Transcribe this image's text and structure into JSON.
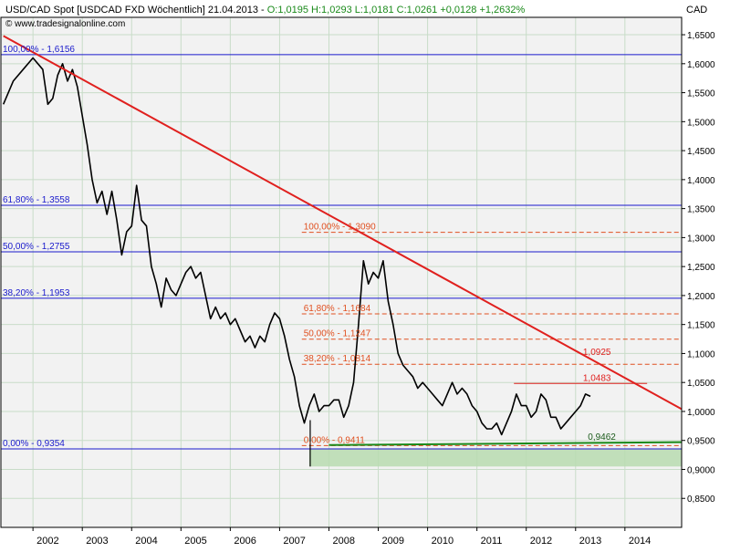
{
  "header": {
    "line1_main": "USD/CAD Spot [USDCAD FXD  Wöchentlich] 21.04.2013 - ",
    "line1_o": "O:1,0195",
    "line1_h": " H:1,0293",
    "line1_l": " L:1,0181",
    "line1_c": " C:1,0261 +0,0128 +1,2632%",
    "line2": "© www.tradesignalonline.com",
    "currency": "CAD"
  },
  "colors": {
    "background": "#f2f2f2",
    "grid": "#c8dcc8",
    "price": "#000000",
    "trendline": "#e0201e",
    "fib_major": "#1a1acc",
    "fib_minor": "#e05020",
    "support": "#1a8a1a",
    "zone": "#b8dcb0",
    "header_green": "#1a8a1a",
    "header_blue": "#0000cc"
  },
  "chart_data": {
    "type": "line",
    "title": "USD/CAD Spot [USDCAD FXD Wöchentlich] 21.04.2013",
    "x_unit": "year",
    "ylim": [
      0.8,
      1.68
    ],
    "xlim": [
      2001.35,
      2015.15
    ],
    "y_ticks": [
      "1,6500",
      "1,6000",
      "1,5500",
      "1,5000",
      "1,4500",
      "1,4000",
      "1,3500",
      "1,3000",
      "1,2500",
      "1,2000",
      "1,1500",
      "1,1000",
      "1,0500",
      "1,0000",
      "0,9500",
      "0,9000",
      "0,8500"
    ],
    "y_tick_values": [
      1.65,
      1.6,
      1.55,
      1.5,
      1.45,
      1.4,
      1.35,
      1.3,
      1.25,
      1.2,
      1.15,
      1.1,
      1.05,
      1.0,
      0.95,
      0.9,
      0.85
    ],
    "x_ticks": [
      "2002",
      "2003",
      "2004",
      "2005",
      "2006",
      "2007",
      "2008",
      "2009",
      "2010",
      "2011",
      "2012",
      "2013",
      "2014"
    ],
    "x_tick_values": [
      2002,
      2003,
      2004,
      2005,
      2006,
      2007,
      2008,
      2009,
      2010,
      2011,
      2012,
      2013,
      2014
    ],
    "grid": true,
    "series": [
      {
        "x": [
          2001.4,
          2001.6,
          2001.8,
          2002.0,
          2002.1,
          2002.2,
          2002.3,
          2002.4,
          2002.5,
          2002.6,
          2002.7,
          2002.8,
          2002.9,
          2003.0,
          2003.1,
          2003.2,
          2003.3,
          2003.4,
          2003.5,
          2003.6,
          2003.7,
          2003.8,
          2003.9,
          2004.0,
          2004.1,
          2004.2,
          2004.3,
          2004.4,
          2004.5,
          2004.6,
          2004.7,
          2004.8,
          2004.9,
          2005.0,
          2005.1,
          2005.2,
          2005.3,
          2005.4,
          2005.5,
          2005.6,
          2005.7,
          2005.8,
          2005.9,
          2006.0,
          2006.1,
          2006.2,
          2006.3,
          2006.4,
          2006.5,
          2006.6,
          2006.7,
          2006.8,
          2006.9,
          2007.0,
          2007.1,
          2007.2,
          2007.3,
          2007.4,
          2007.5,
          2007.6,
          2007.7,
          2007.8,
          2007.9,
          2008.0,
          2008.1,
          2008.2,
          2008.3,
          2008.4,
          2008.5,
          2008.6,
          2008.7,
          2008.8,
          2008.9,
          2009.0,
          2009.1,
          2009.2,
          2009.3,
          2009.4,
          2009.5,
          2009.6,
          2009.7,
          2009.8,
          2009.9,
          2010.0,
          2010.1,
          2010.2,
          2010.3,
          2010.4,
          2010.5,
          2010.6,
          2010.7,
          2010.8,
          2010.9,
          2011.0,
          2011.1,
          2011.2,
          2011.3,
          2011.4,
          2011.5,
          2011.6,
          2011.7,
          2011.8,
          2011.9,
          2012.0,
          2012.1,
          2012.2,
          2012.3,
          2012.4,
          2012.5,
          2012.6,
          2012.7,
          2012.8,
          2012.9,
          2013.0,
          2013.1,
          2013.2,
          2013.3
        ],
        "values": [
          1.53,
          1.57,
          1.59,
          1.61,
          1.6,
          1.59,
          1.53,
          1.54,
          1.58,
          1.6,
          1.57,
          1.59,
          1.56,
          1.51,
          1.46,
          1.4,
          1.36,
          1.38,
          1.34,
          1.38,
          1.33,
          1.27,
          1.31,
          1.32,
          1.39,
          1.33,
          1.32,
          1.25,
          1.22,
          1.18,
          1.23,
          1.21,
          1.2,
          1.22,
          1.24,
          1.25,
          1.23,
          1.24,
          1.2,
          1.16,
          1.18,
          1.16,
          1.17,
          1.15,
          1.16,
          1.14,
          1.12,
          1.13,
          1.11,
          1.13,
          1.12,
          1.15,
          1.17,
          1.16,
          1.13,
          1.09,
          1.06,
          1.01,
          0.98,
          1.01,
          1.03,
          1.0,
          1.01,
          1.01,
          1.02,
          1.02,
          0.99,
          1.01,
          1.05,
          1.15,
          1.26,
          1.22,
          1.24,
          1.23,
          1.26,
          1.19,
          1.15,
          1.1,
          1.08,
          1.07,
          1.06,
          1.04,
          1.05,
          1.04,
          1.03,
          1.02,
          1.01,
          1.03,
          1.05,
          1.03,
          1.04,
          1.03,
          1.01,
          1.0,
          0.98,
          0.97,
          0.97,
          0.98,
          0.96,
          0.98,
          1.0,
          1.03,
          1.01,
          1.01,
          0.99,
          1.0,
          1.03,
          1.02,
          0.99,
          0.99,
          0.97,
          0.98,
          0.99,
          1.0,
          1.01,
          1.03,
          1.0261
        ]
      }
    ],
    "trendline": {
      "x": [
        2001.4,
        2015.15
      ],
      "y": [
        1.648,
        1.004
      ]
    },
    "support_line": {
      "x": [
        2008.0,
        2015.15
      ],
      "y": [
        0.942,
        0.947
      ]
    },
    "support_zone": {
      "x": [
        2007.6,
        2015.15
      ],
      "y": [
        0.905,
        0.9354
      ]
    },
    "spike_low": {
      "x": 2007.62,
      "y": 0.905
    },
    "horizontal_levels": [
      {
        "value": 1.6156,
        "label": "100,00% - 1,6156",
        "style": "solid",
        "color_key": "fib_major",
        "x_start": 2001.35
      },
      {
        "value": 1.3558,
        "label": "61,80% - 1,3558",
        "style": "solid",
        "color_key": "fib_major",
        "x_start": 2001.35
      },
      {
        "value": 1.2755,
        "label": "50,00% - 1,2755",
        "style": "solid",
        "color_key": "fib_major",
        "x_start": 2001.35
      },
      {
        "value": 1.1953,
        "label": "38,20% - 1,1953",
        "style": "solid",
        "color_key": "fib_major",
        "x_start": 2001.35
      },
      {
        "value": 0.9354,
        "label": "0,00% - 0,9354",
        "style": "solid",
        "color_key": "fib_major",
        "x_start": 2001.35
      },
      {
        "value": 1.309,
        "label": "100,00% - 1,3090",
        "style": "dashed",
        "color_key": "fib_minor",
        "x_start": 2007.45
      },
      {
        "value": 1.1684,
        "label": "61,80% - 1,1684",
        "style": "dashed",
        "color_key": "fib_minor",
        "x_start": 2007.45
      },
      {
        "value": 1.1247,
        "label": "50,00% - 1,1247",
        "style": "dashed",
        "color_key": "fib_minor",
        "x_start": 2007.45
      },
      {
        "value": 1.0814,
        "label": "38,20% - 1,0814",
        "style": "dashed",
        "color_key": "fib_minor",
        "x_start": 2007.45
      },
      {
        "value": 0.9411,
        "label": "0,00% - 0,9411",
        "style": "dashed",
        "color_key": "fib_minor",
        "x_start": 2007.45
      }
    ],
    "price_labels": [
      {
        "value": 1.0925,
        "label": "1,0925",
        "x": 2013.15
      },
      {
        "value": 1.0483,
        "label": "1,0483",
        "x": 2013.15
      },
      {
        "value": 0.9462,
        "label": "0,9462",
        "x": 2013.25
      }
    ],
    "resistance_segment": {
      "x": [
        2011.75,
        2014.45
      ],
      "y": 1.0483
    }
  }
}
